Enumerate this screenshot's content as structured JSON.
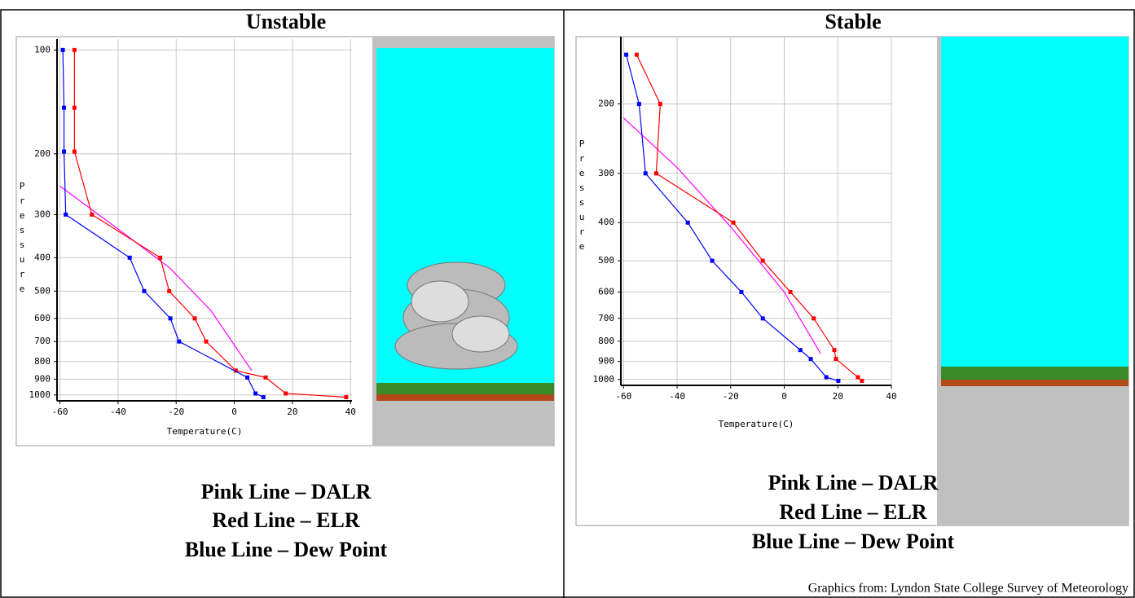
{
  "chart_data": [
    {
      "type": "line",
      "title": "Unstable",
      "x_label": "Temperature(C)",
      "y_label": "Pressure",
      "yscale": "log",
      "xlim": [
        -61,
        40.5
      ],
      "xticks": [
        -60,
        -40,
        -20,
        0,
        20,
        40
      ],
      "ylim": [
        1040,
        93
      ],
      "yticks": [
        100,
        200,
        300,
        400,
        500,
        600,
        700,
        800,
        900,
        1000
      ],
      "grid": true,
      "series": [
        {
          "name": "Pink Line – DALR",
          "color": "#ff00ff",
          "markers": false,
          "x": [
            -60,
            -38,
            -22,
            -8,
            6
          ],
          "values": [
            248,
            340,
            430,
            570,
            850
          ]
        },
        {
          "name": "Red Line – ELR",
          "color": "#ff0000",
          "markers": true,
          "x": [
            -55,
            -55,
            -55,
            -49,
            -25.5,
            -22.4,
            -13.6,
            -9.7,
            0.5,
            10.8,
            17.7,
            38.5
          ],
          "values": [
            100,
            147,
            197,
            300,
            400,
            500,
            600,
            700,
            850,
            890,
            990,
            1015
          ]
        },
        {
          "name": "Blue Line – Dew Point",
          "color": "#0000ff",
          "markers": true,
          "x": [
            -59,
            -58.6,
            -58.6,
            -58,
            -36,
            -31,
            -22,
            -19,
            4.5,
            7.3,
            10
          ],
          "values": [
            100,
            147,
            197,
            300,
            400,
            500,
            600,
            700,
            890,
            990,
            1015
          ]
        }
      ]
    },
    {
      "type": "line",
      "title": "Stable",
      "x_label": "Temperature(C)",
      "y_label": "Pressure",
      "yscale": "log",
      "xlim": [
        -61,
        40
      ],
      "xticks": [
        -60,
        -40,
        -20,
        0,
        20,
        40
      ],
      "ylim": [
        1035,
        135
      ],
      "yticks": [
        200,
        300,
        400,
        500,
        600,
        700,
        800,
        900,
        1000
      ],
      "grid": true,
      "series": [
        {
          "name": "Pink Line – DALR",
          "color": "#ff00ff",
          "markers": false,
          "x": [
            -60,
            -40,
            -20,
            0,
            13.6
          ],
          "values": [
            217,
            290,
            410,
            600,
            860
          ]
        },
        {
          "name": "Red Line – ELR",
          "color": "#ff0000",
          "markers": true,
          "x": [
            -55.1,
            -46.3,
            -47.8,
            -19,
            -8,
            2.3,
            11,
            18.7,
            19.3,
            27.5,
            29
          ],
          "values": [
            150,
            200,
            300,
            400,
            500,
            600,
            700,
            842,
            887,
            987,
            1008
          ]
        },
        {
          "name": "Blue Line – Dew Point",
          "color": "#0000ff",
          "markers": true,
          "x": [
            -59,
            -54.2,
            -51.8,
            -36,
            -26.9,
            -16,
            -8,
            6,
            9.9,
            15.7,
            20.2
          ],
          "values": [
            150,
            200,
            300,
            400,
            500,
            600,
            700,
            842,
            887,
            987,
            1008
          ]
        }
      ]
    }
  ],
  "credit": "Graphics from:  Lyndon State College Survey of Meteorology"
}
